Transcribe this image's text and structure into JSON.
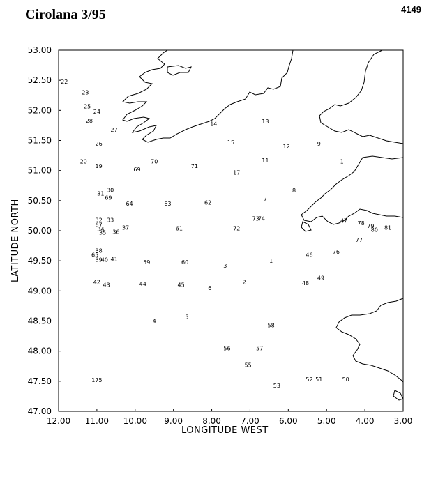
{
  "header": {
    "title": "Cirolana 3/95",
    "figure_number": "4149"
  },
  "axes": {
    "xlabel": "LONGITUDE WEST",
    "ylabel": "LATITUDE NORTH",
    "xlim": [
      12.0,
      3.0
    ],
    "ylim": [
      47.0,
      53.0
    ],
    "xticks": [
      "12.00",
      "11.00",
      "10.00",
      "9.00",
      "8.00",
      "7.00",
      "6.00",
      "5.00",
      "4.00",
      "3.00"
    ],
    "yticks": [
      "53.00",
      "52.50",
      "52.00",
      "51.50",
      "51.00",
      "50.50",
      "50.00",
      "49.50",
      "49.00",
      "48.50",
      "48.00",
      "47.50",
      "47.00"
    ]
  },
  "stations": [
    {
      "label": "22",
      "lon": 11.85,
      "lat": 52.48
    },
    {
      "label": "23",
      "lon": 11.3,
      "lat": 52.3
    },
    {
      "label": "25",
      "lon": 11.25,
      "lat": 52.07
    },
    {
      "label": "24",
      "lon": 11.0,
      "lat": 51.98
    },
    {
      "label": "28",
      "lon": 11.2,
      "lat": 51.83
    },
    {
      "label": "27",
      "lon": 10.55,
      "lat": 51.68
    },
    {
      "label": "26",
      "lon": 10.95,
      "lat": 51.45
    },
    {
      "label": "20",
      "lon": 11.35,
      "lat": 51.15
    },
    {
      "label": "19",
      "lon": 10.95,
      "lat": 51.08
    },
    {
      "label": "70",
      "lon": 9.5,
      "lat": 51.15
    },
    {
      "label": "69",
      "lon": 9.95,
      "lat": 51.02
    },
    {
      "label": "71",
      "lon": 8.45,
      "lat": 51.08
    },
    {
      "label": "14",
      "lon": 7.95,
      "lat": 51.78
    },
    {
      "label": "13",
      "lon": 6.6,
      "lat": 51.82
    },
    {
      "label": "15",
      "lon": 7.5,
      "lat": 51.47
    },
    {
      "label": "12",
      "lon": 6.05,
      "lat": 51.4
    },
    {
      "label": "9",
      "lon": 5.2,
      "lat": 51.45
    },
    {
      "label": "11",
      "lon": 6.6,
      "lat": 51.17
    },
    {
      "label": "17",
      "lon": 7.35,
      "lat": 50.97
    },
    {
      "label": "1",
      "lon": 4.6,
      "lat": 51.15
    },
    {
      "label": "31",
      "lon": 10.9,
      "lat": 50.62
    },
    {
      "label": "30",
      "lon": 10.65,
      "lat": 50.68
    },
    {
      "label": "69",
      "lon": 10.7,
      "lat": 50.55
    },
    {
      "label": "64",
      "lon": 10.15,
      "lat": 50.45
    },
    {
      "label": "63",
      "lon": 9.15,
      "lat": 50.45
    },
    {
      "label": "62",
      "lon": 8.1,
      "lat": 50.47
    },
    {
      "label": "7",
      "lon": 6.6,
      "lat": 50.53
    },
    {
      "label": "8",
      "lon": 5.85,
      "lat": 50.67
    },
    {
      "label": "32",
      "lon": 10.95,
      "lat": 50.18
    },
    {
      "label": "33",
      "lon": 10.65,
      "lat": 50.18
    },
    {
      "label": "67",
      "lon": 10.95,
      "lat": 50.1
    },
    {
      "label": "34",
      "lon": 10.9,
      "lat": 50.03
    },
    {
      "label": "35",
      "lon": 10.85,
      "lat": 49.97
    },
    {
      "label": "36",
      "lon": 10.5,
      "lat": 49.98
    },
    {
      "label": "37",
      "lon": 10.25,
      "lat": 50.05
    },
    {
      "label": "61",
      "lon": 8.85,
      "lat": 50.04
    },
    {
      "label": "72",
      "lon": 7.35,
      "lat": 50.04
    },
    {
      "label": "73",
      "lon": 6.85,
      "lat": 50.2
    },
    {
      "label": "74",
      "lon": 6.7,
      "lat": 50.2
    },
    {
      "label": "47",
      "lon": 4.55,
      "lat": 50.17
    },
    {
      "label": "78",
      "lon": 4.1,
      "lat": 50.13
    },
    {
      "label": "79",
      "lon": 3.85,
      "lat": 50.08
    },
    {
      "label": "80",
      "lon": 3.75,
      "lat": 50.02
    },
    {
      "label": "81",
      "lon": 3.4,
      "lat": 50.05
    },
    {
      "label": "77",
      "lon": 4.15,
      "lat": 49.85
    },
    {
      "label": "76",
      "lon": 4.75,
      "lat": 49.65
    },
    {
      "label": "46",
      "lon": 5.45,
      "lat": 49.6
    },
    {
      "label": "38",
      "lon": 10.95,
      "lat": 49.67
    },
    {
      "label": "65",
      "lon": 11.05,
      "lat": 49.6
    },
    {
      "label": "39",
      "lon": 10.95,
      "lat": 49.52
    },
    {
      "label": "40",
      "lon": 10.8,
      "lat": 49.52
    },
    {
      "label": "41",
      "lon": 10.55,
      "lat": 49.53
    },
    {
      "label": "59",
      "lon": 9.7,
      "lat": 49.48
    },
    {
      "label": "60",
      "lon": 8.7,
      "lat": 49.48
    },
    {
      "label": "3",
      "lon": 7.65,
      "lat": 49.42
    },
    {
      "label": "1",
      "lon": 6.45,
      "lat": 49.5
    },
    {
      "label": "42",
      "lon": 11.0,
      "lat": 49.15
    },
    {
      "label": "43",
      "lon": 10.75,
      "lat": 49.1
    },
    {
      "label": "44",
      "lon": 9.8,
      "lat": 49.12
    },
    {
      "label": "45",
      "lon": 8.8,
      "lat": 49.1
    },
    {
      "label": "6",
      "lon": 8.05,
      "lat": 49.05
    },
    {
      "label": "2",
      "lon": 7.15,
      "lat": 49.15
    },
    {
      "label": "48",
      "lon": 5.55,
      "lat": 49.13
    },
    {
      "label": "49",
      "lon": 5.15,
      "lat": 49.22
    },
    {
      "label": "4",
      "lon": 9.5,
      "lat": 48.5
    },
    {
      "label": "5",
      "lon": 8.65,
      "lat": 48.57
    },
    {
      "label": "58",
      "lon": 6.45,
      "lat": 48.43
    },
    {
      "label": "56",
      "lon": 7.6,
      "lat": 48.05
    },
    {
      "label": "57",
      "lon": 6.75,
      "lat": 48.05
    },
    {
      "label": "55",
      "lon": 7.05,
      "lat": 47.77
    },
    {
      "label": "175",
      "lon": 11.0,
      "lat": 47.52
    },
    {
      "label": "52",
      "lon": 5.45,
      "lat": 47.53
    },
    {
      "label": "51",
      "lon": 5.2,
      "lat": 47.53
    },
    {
      "label": "53",
      "lon": 6.3,
      "lat": 47.43
    },
    {
      "label": "50",
      "lon": 4.5,
      "lat": 47.53
    }
  ]
}
